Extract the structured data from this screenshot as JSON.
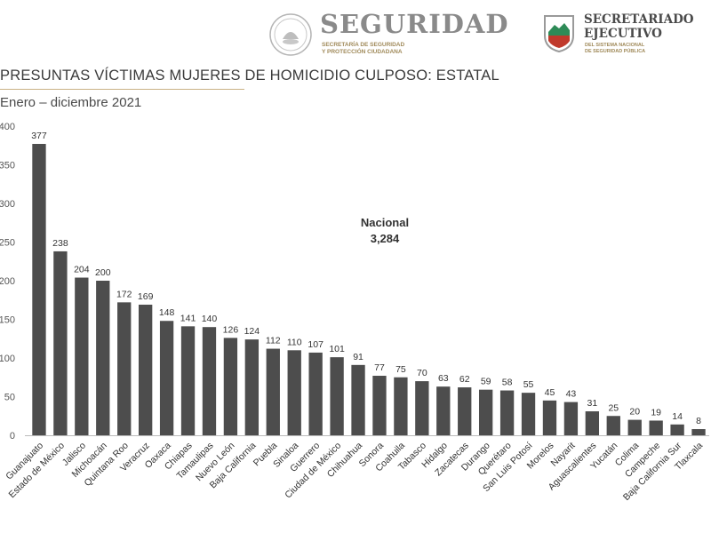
{
  "header": {
    "seguridad_title": "SEGURIDAD",
    "seguridad_sub_1": "SECRETARÍA DE SEGURIDAD",
    "seguridad_sub_2": "Y PROTECCIÓN CIUDADANA",
    "sesnsp_title_1": "SECRETARIADO",
    "sesnsp_title_2": "EJECUTIVO",
    "sesnsp_sub_1": "DEL SISTEMA NACIONAL",
    "sesnsp_sub_2": "DE SEGURIDAD PÚBLICA"
  },
  "chart_data": {
    "type": "bar",
    "title": "PRESUNTAS VÍCTIMAS MUJERES DE HOMICIDIO CULPOSO: ESTATAL",
    "subtitle": "Enero – diciembre 2021",
    "xlabel": "",
    "ylabel": "",
    "ylim": [
      0,
      400
    ],
    "yticks": [
      0,
      50,
      100,
      150,
      200,
      250,
      300,
      350,
      400
    ],
    "grid": false,
    "bar_color": "#4d4d4d",
    "categories": [
      "Guanajuato",
      "Estado de México",
      "Jalisco",
      "Michoacán",
      "Quintana Roo",
      "Veracruz",
      "Oaxaca",
      "Chiapas",
      "Tamaulipas",
      "Nuevo León",
      "Baja California",
      "Puebla",
      "Sinaloa",
      "Guerrero",
      "Ciudad de México",
      "Chihuahua",
      "Sonora",
      "Coahuila",
      "Tabasco",
      "Hidalgo",
      "Zacatecas",
      "Durango",
      "Querétaro",
      "San Luis Potosí",
      "Morelos",
      "Nayarit",
      "Aguascalientes",
      "Yucatán",
      "Colima",
      "Campeche",
      "Baja California Sur",
      "Tlaxcala"
    ],
    "values": [
      377,
      238,
      204,
      200,
      172,
      169,
      148,
      141,
      140,
      126,
      124,
      112,
      110,
      107,
      101,
      91,
      77,
      75,
      70,
      63,
      62,
      59,
      58,
      55,
      45,
      43,
      31,
      25,
      20,
      19,
      14,
      8
    ],
    "annotation": {
      "label": "Nacional",
      "value": "3,284"
    }
  }
}
